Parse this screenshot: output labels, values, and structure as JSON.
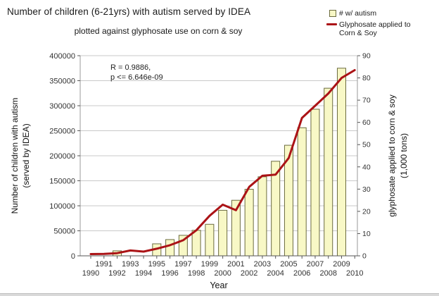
{
  "header": {
    "title": "Number of children (6-21yrs) with autism served by IDEA",
    "subtitle": "plotted against glyphosate use on corn & soy"
  },
  "legend": {
    "autism_label": "# w/ autism",
    "glyphosate_label_line1": "Glyphosate applied to",
    "glyphosate_label_line2": "Corn & Soy"
  },
  "colors": {
    "bar_fill": "#f8f8c6",
    "bar_stroke": "#6b6b3f",
    "line_red": "#ab1316",
    "gridline": "#c9c9c9",
    "axis_frame": "#999999",
    "axis_bottom": "#555555",
    "tick_text": "#333333"
  },
  "chart_data": {
    "type": "bar",
    "overlay_type": "line",
    "title": "Number of children (6-21yrs) with autism served by IDEA",
    "subtitle": "plotted against glyphosate use on corn & soy",
    "xlabel": "Year",
    "ylabel_left": "Number of children with autism (served by IDEA)",
    "ylabel_left_line1": "Number of children with autism",
    "ylabel_left_line2": "(served by IDEA)",
    "ylabel_right": "glyphosate applied to corn & soy (1,000 tons)",
    "ylabel_right_line1": "glyphosate applied to corn & soy",
    "ylabel_right_line2": "(1,000 tons)",
    "annotation": {
      "line1": "R = 0.9886,",
      "line2": "p <= 6.646e-09"
    },
    "xlim": [
      1989.2,
      2010.2
    ],
    "ylim_left": [
      0,
      400000
    ],
    "ylim_right": [
      0,
      90
    ],
    "yticks_left": [
      0,
      50000,
      100000,
      150000,
      200000,
      250000,
      300000,
      350000,
      400000
    ],
    "yticks_right": [
      0,
      10,
      20,
      30,
      40,
      50,
      60,
      70,
      80,
      90
    ],
    "xticks": [
      1990,
      1991,
      1992,
      1993,
      1994,
      1995,
      1996,
      1997,
      1998,
      1999,
      2000,
      2001,
      2002,
      2003,
      2004,
      2005,
      2006,
      2007,
      2008,
      2009,
      2010
    ],
    "grid": "horizontal",
    "legend_position": "top-right",
    "series": [
      {
        "name": "# w/ autism",
        "type": "bar",
        "axis": "left",
        "x": [
          1992,
          1995,
          1996,
          1997,
          1998,
          1999,
          2000,
          2001,
          2002,
          2003,
          2004,
          2005,
          2006,
          2007,
          2008,
          2009
        ],
        "values": [
          10000,
          24000,
          32500,
          41000,
          51000,
          63000,
          91000,
          111000,
          133000,
          158000,
          189000,
          221000,
          256000,
          293000,
          335000,
          375000
        ]
      },
      {
        "name": "Glyphosate applied to Corn & Soy",
        "type": "line",
        "axis": "right",
        "x": [
          1990,
          1991,
          1992,
          1993,
          1994,
          1995,
          1996,
          1997,
          1998,
          1999,
          2000,
          2001,
          2002,
          2003,
          2004,
          2005,
          2006,
          2007,
          2008,
          2009,
          2010
        ],
        "values": [
          0.8,
          0.9,
          1.2,
          2.4,
          1.9,
          3.2,
          4.8,
          7.0,
          11.5,
          18.0,
          23.0,
          20.5,
          31.0,
          36.0,
          36.5,
          44.0,
          62.0,
          67.5,
          73.0,
          80.0,
          83.5
        ]
      }
    ]
  }
}
